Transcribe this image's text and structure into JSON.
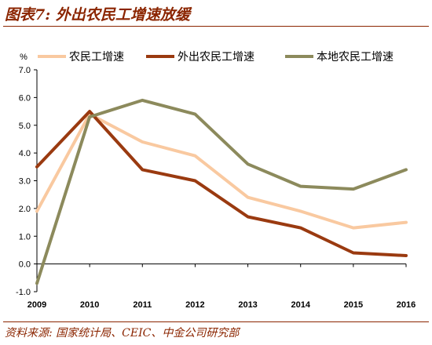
{
  "header": {
    "title": "图表7:  外出农民工增速放缓"
  },
  "footer": {
    "source": "资料来源:  国家统计局、CEIC、中金公司研究部"
  },
  "chart_data": {
    "type": "line",
    "ylabel": "%",
    "x": [
      "2009",
      "2010",
      "2011",
      "2012",
      "2013",
      "2014",
      "2015",
      "2016"
    ],
    "yticks": [
      "7.0",
      "6.0",
      "5.0",
      "4.0",
      "3.0",
      "2.0",
      "1.0",
      "0.0",
      "-1.0"
    ],
    "ylim": [
      -1.0,
      7.0
    ],
    "grid": false,
    "legend_position": "top",
    "series": [
      {
        "name": "农民工增速",
        "color": "#F9C9A0",
        "values": [
          1.9,
          5.4,
          4.4,
          3.9,
          2.4,
          1.9,
          1.3,
          1.5
        ]
      },
      {
        "name": "外出农民工增速",
        "color": "#9A3A10",
        "values": [
          3.5,
          5.5,
          3.4,
          3.0,
          1.7,
          1.3,
          0.4,
          0.3
        ]
      },
      {
        "name": "本地农民工增速",
        "color": "#8C8A5C",
        "values": [
          -0.7,
          5.3,
          5.9,
          5.4,
          3.6,
          2.8,
          2.7,
          3.4
        ]
      }
    ]
  }
}
